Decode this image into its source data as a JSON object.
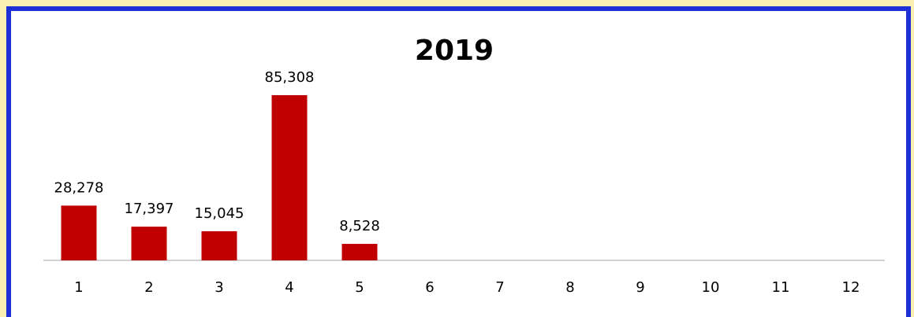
{
  "chart_data": {
    "type": "bar",
    "title": "2019",
    "categories": [
      "1",
      "2",
      "3",
      "4",
      "5",
      "6",
      "7",
      "8",
      "9",
      "10",
      "11",
      "12"
    ],
    "values": [
      28278,
      17397,
      15045,
      85308,
      8528,
      null,
      null,
      null,
      null,
      null,
      null,
      null
    ],
    "value_labels": [
      "28,278",
      "17,397",
      "15,045",
      "85,308",
      "8,528",
      null,
      null,
      null,
      null,
      null,
      null,
      null
    ],
    "color": "#c00000"
  }
}
